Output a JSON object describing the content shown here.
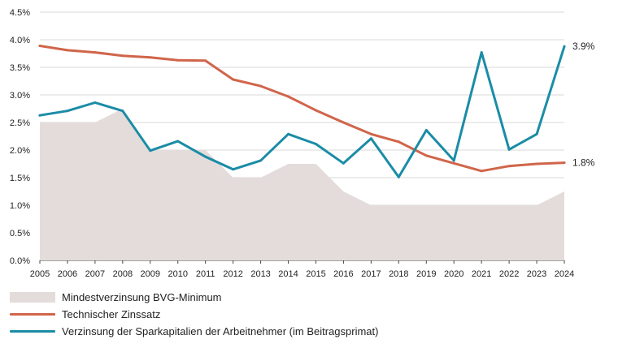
{
  "chart_data": {
    "type": "line",
    "x": [
      "2005",
      "2006",
      "2007",
      "2008",
      "2009",
      "2010",
      "2011",
      "2012",
      "2013",
      "2014",
      "2015",
      "2016",
      "2017",
      "2018",
      "2019",
      "2020",
      "2021",
      "2022",
      "2023",
      "2024"
    ],
    "y_ticks": [
      "0.0%",
      "0.5%",
      "1.0%",
      "1.5%",
      "2.0%",
      "2.5%",
      "3.0%",
      "3.5%",
      "4.0%",
      "4.5%"
    ],
    "ylim": [
      0,
      4.5
    ],
    "grid": true,
    "legend_position": "bottom-left",
    "series": [
      {
        "name": "Mindestverzinsung BVG-Minimum",
        "kind": "area",
        "color": "#e4dcdb",
        "values": [
          2.5,
          2.5,
          2.5,
          2.75,
          2.0,
          2.0,
          2.0,
          1.5,
          1.5,
          1.75,
          1.75,
          1.25,
          1.0,
          1.0,
          1.0,
          1.0,
          1.0,
          1.0,
          1.0,
          1.25
        ]
      },
      {
        "name": "Technischer Zinssatz",
        "kind": "line",
        "color": "#d0654a",
        "values": [
          3.89,
          3.81,
          3.77,
          3.71,
          3.68,
          3.63,
          3.62,
          3.28,
          3.16,
          2.97,
          2.72,
          2.5,
          2.29,
          2.15,
          1.9,
          1.76,
          1.62,
          1.71,
          1.75,
          1.77
        ],
        "end_label": "1.8%"
      },
      {
        "name": "Verzinsung der Sparkapitalien der Arbeitnehmer (im Beitragsprimat)",
        "kind": "line",
        "color": "#1b8ca6",
        "values": [
          2.63,
          2.71,
          2.86,
          2.71,
          1.99,
          2.16,
          1.88,
          1.65,
          1.81,
          2.29,
          2.11,
          1.76,
          2.21,
          1.51,
          2.36,
          1.81,
          3.77,
          2.01,
          2.29,
          3.88
        ],
        "end_label": "3.9%"
      }
    ]
  }
}
